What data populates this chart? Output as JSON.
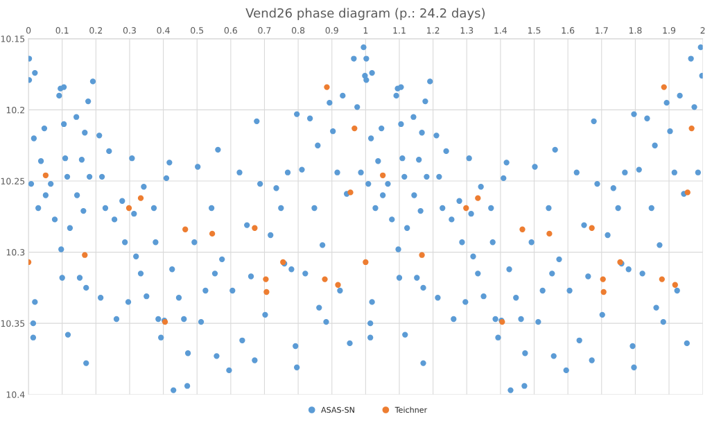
{
  "chart_data": {
    "type": "scatter",
    "title": "Vend26 phase diagram (p.: 24.2 days)",
    "xlim": [
      0,
      2
    ],
    "xticks": [
      0,
      0.1,
      0.2,
      0.3,
      0.4,
      0.5,
      0.6,
      0.7,
      0.8,
      0.9,
      1,
      1.1,
      1.2,
      1.3,
      1.4,
      1.5,
      1.6,
      1.7,
      1.8,
      1.9,
      2
    ],
    "ylim": [
      10.4,
      10.15
    ],
    "yticks": [
      10.15,
      10.2,
      10.25,
      10.3,
      10.35,
      10.4
    ],
    "grid": true,
    "legend": "bottom",
    "marker": "circle",
    "series": [
      {
        "name": "ASAS-SN",
        "color": "#5b9bd5",
        "x": [
          0.002,
          0.002,
          0.019,
          0.016,
          0.008,
          0.019,
          0.014,
          0.014,
          0.029,
          0.037,
          0.047,
          0.051,
          0.066,
          0.078,
          0.091,
          0.095,
          0.097,
          0.1,
          0.105,
          0.105,
          0.109,
          0.115,
          0.117,
          0.123,
          0.142,
          0.144,
          0.152,
          0.158,
          0.163,
          0.167,
          0.171,
          0.171,
          0.177,
          0.181,
          0.191,
          0.21,
          0.214,
          0.218,
          0.228,
          0.239,
          0.255,
          0.261,
          0.278,
          0.286,
          0.296,
          0.307,
          0.313,
          0.319,
          0.333,
          0.342,
          0.35,
          0.372,
          0.377,
          0.385,
          0.393,
          0.403,
          0.409,
          0.418,
          0.426,
          0.43,
          0.446,
          0.461,
          0.471,
          0.473,
          0.492,
          0.502,
          0.512,
          0.525,
          0.543,
          0.553,
          0.562,
          0.558,
          0.574,
          0.595,
          0.605,
          0.626,
          0.634,
          0.648,
          0.66,
          0.671,
          0.677,
          0.687,
          0.702,
          0.718,
          0.735,
          0.749,
          0.759,
          0.769,
          0.78,
          0.792,
          0.796,
          0.796,
          0.811,
          0.821,
          0.835,
          0.848,
          0.858,
          0.862,
          0.872,
          0.883,
          0.893,
          0.903,
          0.916,
          0.924,
          0.932,
          0.944,
          0.953,
          0.965,
          0.975,
          0.986,
          0.994,
          0.998,
          1.002,
          1.002,
          1.019,
          1.016,
          1.008,
          1.019,
          1.014,
          1.014,
          1.029,
          1.037,
          1.047,
          1.051,
          1.066,
          1.078,
          1.091,
          1.095,
          1.097,
          1.1,
          1.105,
          1.105,
          1.109,
          1.115,
          1.117,
          1.123,
          1.142,
          1.144,
          1.152,
          1.158,
          1.163,
          1.167,
          1.171,
          1.171,
          1.177,
          1.181,
          1.191,
          1.21,
          1.214,
          1.218,
          1.228,
          1.239,
          1.255,
          1.261,
          1.278,
          1.286,
          1.296,
          1.307,
          1.313,
          1.319,
          1.333,
          1.342,
          1.35,
          1.372,
          1.377,
          1.385,
          1.393,
          1.403,
          1.409,
          1.418,
          1.426,
          1.43,
          1.446,
          1.461,
          1.471,
          1.473,
          1.492,
          1.502,
          1.512,
          1.525,
          1.543,
          1.553,
          1.562,
          1.558,
          1.574,
          1.595,
          1.605,
          1.626,
          1.634,
          1.648,
          1.66,
          1.671,
          1.677,
          1.687,
          1.702,
          1.718,
          1.735,
          1.749,
          1.759,
          1.769,
          1.78,
          1.792,
          1.796,
          1.796,
          1.811,
          1.821,
          1.835,
          1.848,
          1.858,
          1.862,
          1.872,
          1.883,
          1.893,
          1.903,
          1.916,
          1.924,
          1.932,
          1.944,
          1.953,
          1.965,
          1.975,
          1.986,
          1.994,
          1.998
        ],
        "values": [
          10.164,
          10.179,
          10.174,
          10.22,
          10.252,
          10.335,
          10.35,
          10.36,
          10.269,
          10.236,
          10.213,
          10.26,
          10.252,
          10.277,
          10.19,
          10.185,
          10.298,
          10.318,
          10.184,
          10.21,
          10.234,
          10.247,
          10.358,
          10.283,
          10.205,
          10.26,
          10.318,
          10.235,
          10.271,
          10.216,
          10.325,
          10.378,
          10.194,
          10.247,
          10.18,
          10.218,
          10.332,
          10.247,
          10.269,
          10.229,
          10.277,
          10.347,
          10.264,
          10.293,
          10.335,
          10.234,
          10.273,
          10.303,
          10.315,
          10.254,
          10.331,
          10.269,
          10.293,
          10.347,
          10.36,
          10.348,
          10.248,
          10.237,
          10.312,
          10.397,
          10.332,
          10.347,
          10.394,
          10.371,
          10.293,
          10.24,
          10.349,
          10.327,
          10.269,
          10.315,
          10.228,
          10.373,
          10.305,
          10.383,
          10.327,
          10.244,
          10.362,
          10.281,
          10.317,
          10.376,
          10.208,
          10.252,
          10.344,
          10.288,
          10.255,
          10.269,
          10.308,
          10.244,
          10.312,
          10.366,
          10.381,
          10.203,
          10.242,
          10.315,
          10.206,
          10.269,
          10.225,
          10.339,
          10.295,
          10.349,
          10.195,
          10.215,
          10.244,
          10.327,
          10.19,
          10.259,
          10.364,
          10.164,
          10.198,
          10.244,
          10.156,
          10.176,
          10.164,
          10.179,
          10.174,
          10.22,
          10.252,
          10.335,
          10.35,
          10.36,
          10.269,
          10.236,
          10.213,
          10.26,
          10.252,
          10.277,
          10.19,
          10.185,
          10.298,
          10.318,
          10.184,
          10.21,
          10.234,
          10.247,
          10.358,
          10.283,
          10.205,
          10.26,
          10.318,
          10.235,
          10.271,
          10.216,
          10.325,
          10.378,
          10.194,
          10.247,
          10.18,
          10.218,
          10.332,
          10.247,
          10.269,
          10.229,
          10.277,
          10.347,
          10.264,
          10.293,
          10.335,
          10.234,
          10.273,
          10.303,
          10.315,
          10.254,
          10.331,
          10.269,
          10.293,
          10.347,
          10.36,
          10.348,
          10.248,
          10.237,
          10.312,
          10.397,
          10.332,
          10.347,
          10.394,
          10.371,
          10.293,
          10.24,
          10.349,
          10.327,
          10.269,
          10.315,
          10.228,
          10.373,
          10.305,
          10.383,
          10.327,
          10.244,
          10.362,
          10.281,
          10.317,
          10.376,
          10.208,
          10.252,
          10.344,
          10.288,
          10.255,
          10.269,
          10.308,
          10.244,
          10.312,
          10.366,
          10.381,
          10.203,
          10.242,
          10.315,
          10.206,
          10.269,
          10.225,
          10.339,
          10.295,
          10.349,
          10.195,
          10.215,
          10.244,
          10.327,
          10.19,
          10.259,
          10.364,
          10.164,
          10.198,
          10.244,
          10.156,
          10.176
        ]
      },
      {
        "name": "Teichner",
        "color": "#ed7d31",
        "x": [
          0.0,
          0.051,
          0.167,
          0.298,
          0.333,
          0.405,
          0.465,
          0.545,
          0.671,
          0.704,
          0.706,
          0.755,
          0.879,
          0.885,
          0.918,
          0.955,
          0.967,
          1.0,
          1.051,
          1.167,
          1.298,
          1.333,
          1.405,
          1.465,
          1.545,
          1.671,
          1.704,
          1.706,
          1.755,
          1.879,
          1.885,
          1.918,
          1.955,
          1.967
        ],
        "values": [
          10.307,
          10.246,
          10.302,
          10.269,
          10.262,
          10.349,
          10.284,
          10.287,
          10.283,
          10.319,
          10.328,
          10.307,
          10.319,
          10.184,
          10.323,
          10.258,
          10.213,
          10.307,
          10.246,
          10.302,
          10.269,
          10.262,
          10.349,
          10.284,
          10.287,
          10.283,
          10.319,
          10.328,
          10.307,
          10.319,
          10.184,
          10.323,
          10.258,
          10.213
        ]
      }
    ]
  }
}
